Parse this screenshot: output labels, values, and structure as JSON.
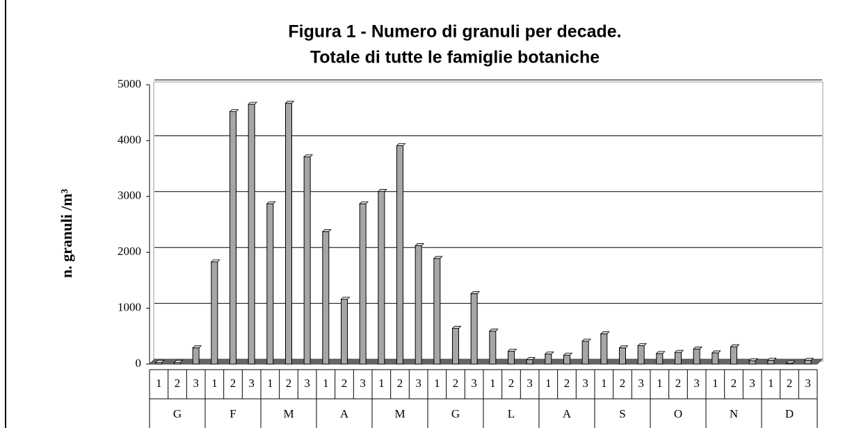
{
  "chart_data": {
    "type": "bar",
    "title": [
      "Figura 1 - Numero di granuli per decade.",
      "Totale di tutte le famiglie botaniche"
    ],
    "y_label": "n. granuli /m³",
    "categories": [
      "1",
      "2",
      "3",
      "1",
      "2",
      "3",
      "1",
      "2",
      "3",
      "1",
      "2",
      "3",
      "1",
      "2",
      "3",
      "1",
      "2",
      "3",
      "1",
      "2",
      "3",
      "1",
      "2",
      "3",
      "1",
      "2",
      "3",
      "1",
      "2",
      "3",
      "1",
      "2",
      "3",
      "1",
      "2",
      "3"
    ],
    "groups": [
      "G",
      "F",
      "M",
      "A",
      "M",
      "G",
      "L",
      "A",
      "S",
      "O",
      "N",
      "D"
    ],
    "values": [
      30,
      30,
      290,
      1830,
      4520,
      4650,
      2870,
      4670,
      3710,
      2370,
      1160,
      2870,
      3090,
      3910,
      2120,
      1890,
      640,
      1260,
      590,
      230,
      80,
      180,
      160,
      410,
      540,
      290,
      330,
      190,
      210,
      270,
      200,
      310,
      60,
      70,
      20,
      70
    ],
    "color": "#a6a6a6",
    "ylim": [
      0,
      5000
    ],
    "yticks": [
      0,
      1000,
      2000,
      3000,
      4000,
      5000
    ],
    "grid": true
  }
}
